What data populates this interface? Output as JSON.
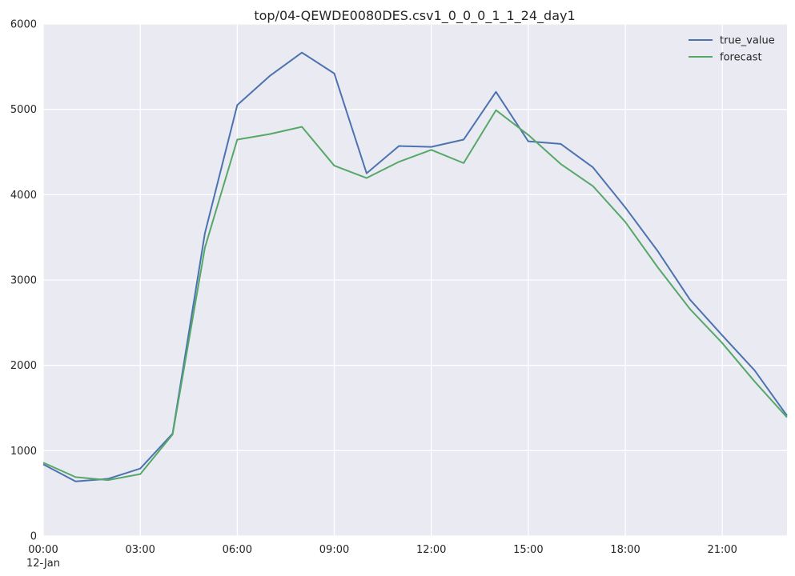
{
  "chart_data": {
    "type": "line",
    "title": "top/04-QEWDE0080DES.csv1_0_0_0_1_1_24_day1",
    "xlabel": "",
    "ylabel": "",
    "x": [
      "00:00",
      "01:00",
      "02:00",
      "03:00",
      "04:00",
      "05:00",
      "06:00",
      "07:00",
      "08:00",
      "09:00",
      "10:00",
      "11:00",
      "12:00",
      "13:00",
      "14:00",
      "15:00",
      "16:00",
      "17:00",
      "18:00",
      "19:00",
      "20:00",
      "21:00",
      "22:00",
      "23:00"
    ],
    "x_tick_labels": [
      "00:00",
      "03:00",
      "06:00",
      "09:00",
      "12:00",
      "15:00",
      "18:00",
      "21:00"
    ],
    "x_tick_hours": [
      0,
      3,
      6,
      9,
      12,
      15,
      18,
      21
    ],
    "x_date_label": "12-Jan",
    "xlim_hours": [
      0,
      23
    ],
    "ylim": [
      0,
      6000
    ],
    "y_ticks": [
      0,
      1000,
      2000,
      3000,
      4000,
      5000,
      6000
    ],
    "grid": true,
    "legend_position": "top-right",
    "series": [
      {
        "name": "true_value",
        "color": "#4c72b0",
        "values": [
          840,
          640,
          670,
          790,
          1200,
          3550,
          5050,
          5390,
          5665,
          5420,
          4250,
          4570,
          4560,
          4645,
          5205,
          4625,
          4595,
          4320,
          3850,
          3340,
          2770,
          2350,
          1940,
          1410
        ]
      },
      {
        "name": "forecast",
        "color": "#55a868",
        "values": [
          860,
          690,
          655,
          725,
          1190,
          3380,
          4645,
          4710,
          4795,
          4340,
          4195,
          4385,
          4525,
          4370,
          4990,
          4700,
          4360,
          4100,
          3680,
          3150,
          2660,
          2260,
          1810,
          1390
        ]
      }
    ]
  },
  "colors": {
    "plot_background": "#eaeaf2",
    "grid": "#ffffff",
    "text": "#262626"
  }
}
